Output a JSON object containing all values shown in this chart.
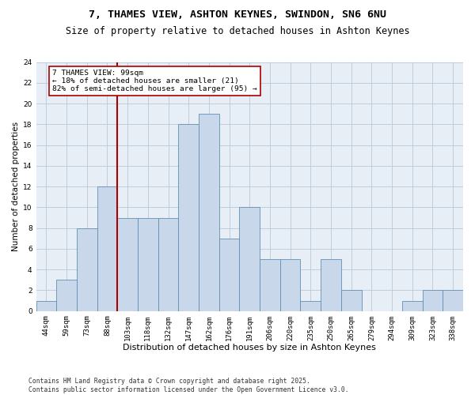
{
  "title1": "7, THAMES VIEW, ASHTON KEYNES, SWINDON, SN6 6NU",
  "title2": "Size of property relative to detached houses in Ashton Keynes",
  "xlabel": "Distribution of detached houses by size in Ashton Keynes",
  "ylabel": "Number of detached properties",
  "categories": [
    "44sqm",
    "59sqm",
    "73sqm",
    "88sqm",
    "103sqm",
    "118sqm",
    "132sqm",
    "147sqm",
    "162sqm",
    "176sqm",
    "191sqm",
    "206sqm",
    "220sqm",
    "235sqm",
    "250sqm",
    "265sqm",
    "279sqm",
    "294sqm",
    "309sqm",
    "323sqm",
    "338sqm"
  ],
  "values": [
    1,
    3,
    8,
    12,
    9,
    9,
    9,
    18,
    19,
    7,
    10,
    5,
    5,
    1,
    5,
    2,
    0,
    0,
    1,
    2,
    2
  ],
  "bar_color": "#c8d8ea",
  "bar_edge_color": "#6090b0",
  "bar_width": 1.0,
  "vline_x_idx": 4,
  "vline_color": "#aa0000",
  "annotation_text": "7 THAMES VIEW: 99sqm\n← 18% of detached houses are smaller (21)\n82% of semi-detached houses are larger (95) →",
  "annotation_box_color": "#aa0000",
  "ylim": [
    0,
    24
  ],
  "yticks": [
    0,
    2,
    4,
    6,
    8,
    10,
    12,
    14,
    16,
    18,
    20,
    22,
    24
  ],
  "grid_color": "#b8c8d8",
  "background_color": "#e8eef5",
  "footer": "Contains HM Land Registry data © Crown copyright and database right 2025.\nContains public sector information licensed under the Open Government Licence v3.0.",
  "title1_fontsize": 9.5,
  "title2_fontsize": 8.5,
  "xlabel_fontsize": 8,
  "ylabel_fontsize": 7.5,
  "tick_fontsize": 6.5,
  "footer_fontsize": 5.8,
  "annotation_fontsize": 6.8
}
